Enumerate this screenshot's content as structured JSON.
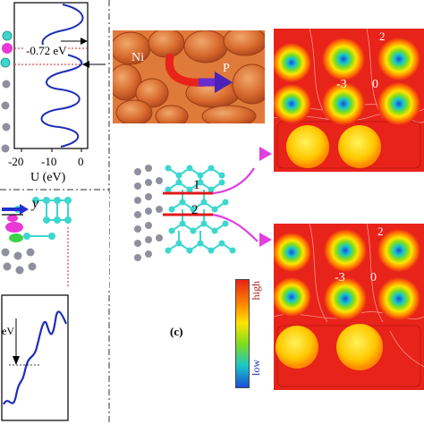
{
  "left_top": {
    "energy_annotation": "-0.72 eV",
    "x_ticks": [
      "-20",
      "-10",
      "0"
    ],
    "x_axis_label": "U (eV)"
  },
  "left_mid": {
    "axis_label": "y"
  },
  "left_bottom": {
    "energy_annotation": "eV"
  },
  "top_center": {
    "atom_label_start": "Ni",
    "atom_label_end": "P"
  },
  "right_maps": {
    "top_labels": [
      "2",
      "-3",
      "0"
    ],
    "bottom_labels": [
      "2",
      "-3",
      "0"
    ]
  },
  "structure": {
    "path_labels": [
      "1",
      "2"
    ]
  },
  "colorbar": {
    "high_label": "high",
    "low_label": "low",
    "colors": [
      "#e8231a",
      "#ff7a00",
      "#ffe400",
      "#7ddc1f",
      "#19c7c9",
      "#1b4dd8"
    ]
  },
  "panel_label": "(c)"
}
